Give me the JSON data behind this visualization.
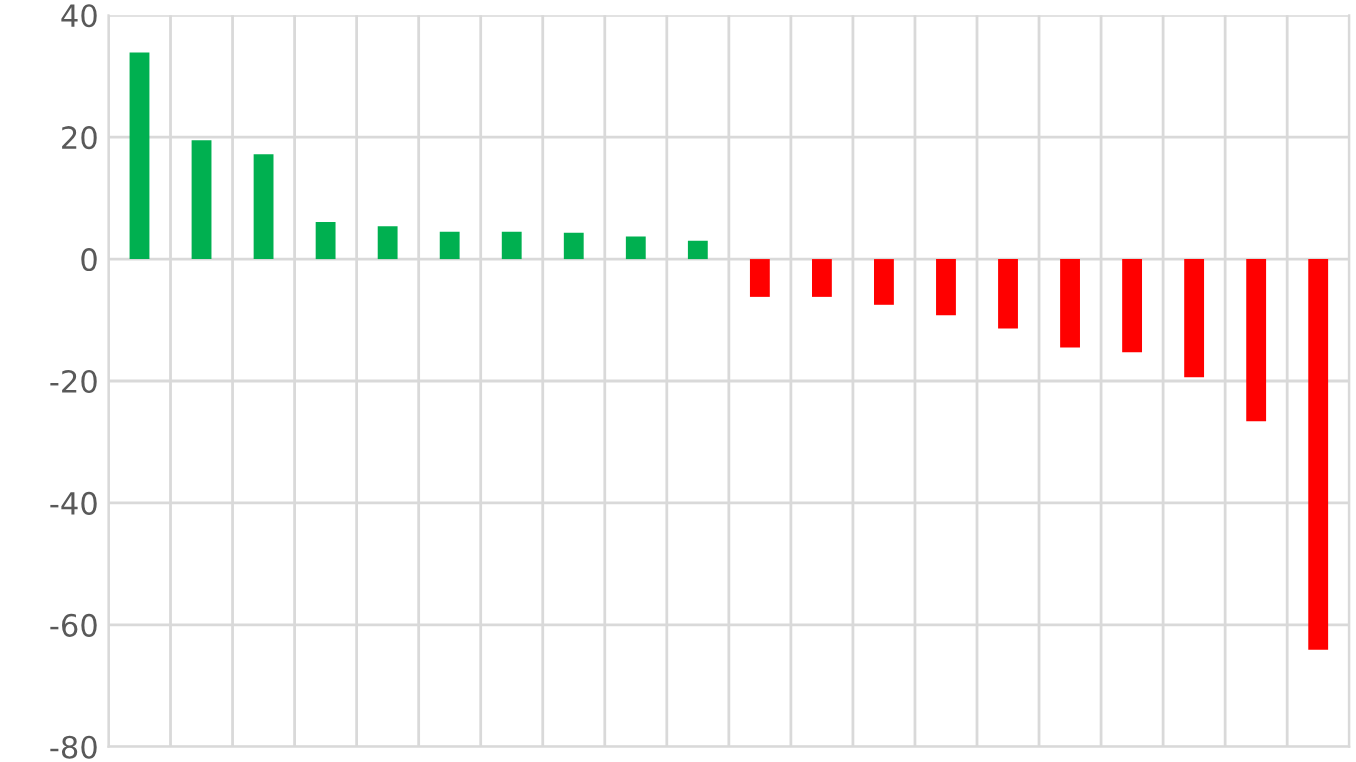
{
  "chart_data": {
    "type": "bar",
    "categories": [
      null,
      null,
      null,
      null,
      null,
      null,
      null,
      null,
      null,
      null,
      null,
      null,
      null,
      null,
      null,
      null,
      null,
      null,
      null,
      null
    ],
    "values": [
      33.9,
      19.5,
      17.2,
      6.1,
      5.4,
      4.5,
      4.5,
      4.3,
      3.7,
      3.0,
      -6.2,
      -6.2,
      -7.5,
      -9.2,
      -11.4,
      -14.5,
      -15.3,
      -19.4,
      -26.6,
      -64.1
    ],
    "colors": [
      "#00b050",
      "#00b050",
      "#00b050",
      "#00b050",
      "#00b050",
      "#00b050",
      "#00b050",
      "#00b050",
      "#00b050",
      "#00b050",
      "#ff0000",
      "#ff0000",
      "#ff0000",
      "#ff0000",
      "#ff0000",
      "#ff0000",
      "#ff0000",
      "#ff0000",
      "#ff0000",
      "#ff0000"
    ],
    "ylim": [
      -80,
      40
    ],
    "yticks": [
      -80,
      -60,
      -40,
      -20,
      0,
      20,
      40
    ],
    "grid": true,
    "tick_labels": "y"
  }
}
